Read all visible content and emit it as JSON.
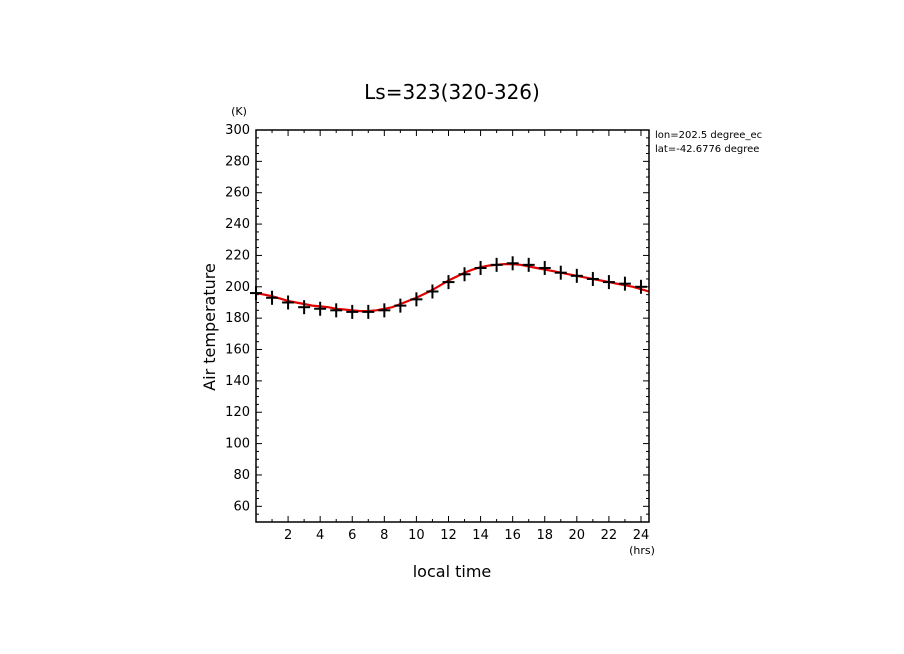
{
  "chart_data": {
    "type": "line",
    "title": "Ls=323(320-326)",
    "xlabel": "local time",
    "ylabel": "Air temperature",
    "x_unit": "(hrs)",
    "y_unit": "(K)",
    "xlim": [
      0,
      24.5
    ],
    "ylim": [
      50,
      300
    ],
    "x_ticks": [
      2,
      4,
      6,
      8,
      10,
      12,
      14,
      16,
      18,
      20,
      22,
      24
    ],
    "y_ticks": [
      60,
      80,
      100,
      120,
      140,
      160,
      180,
      200,
      220,
      240,
      260,
      280,
      300
    ],
    "grid": false,
    "legend": "none",
    "info_lines": [
      "lon=202.5 degree_ec",
      "lat=-42.6776 degree"
    ],
    "series": [
      {
        "style": "plus-markers",
        "color": "#000000",
        "x": [
          0,
          1,
          2,
          3,
          4,
          5,
          6,
          7,
          8,
          9,
          10,
          11,
          12,
          13,
          14,
          15,
          16,
          17,
          18,
          19,
          20,
          21,
          22,
          23,
          24
        ],
        "values": [
          196,
          193,
          190,
          187,
          186,
          185,
          184,
          184,
          185,
          188,
          192,
          197,
          203,
          208,
          212,
          214,
          215,
          214,
          212,
          209,
          207,
          205,
          203,
          202,
          200
        ]
      },
      {
        "style": "line",
        "color": "#e00000",
        "x": [
          0,
          0.5,
          1,
          1.5,
          2,
          2.5,
          3,
          3.5,
          4,
          4.5,
          5,
          5.5,
          6,
          6.5,
          7,
          7.5,
          8,
          8.5,
          9,
          9.5,
          10,
          10.5,
          11,
          11.5,
          12,
          12.5,
          13,
          13.5,
          14,
          14.5,
          15,
          15.5,
          16,
          16.5,
          17,
          17.5,
          18,
          18.5,
          19,
          19.5,
          20,
          20.5,
          21,
          21.5,
          22,
          22.5,
          23,
          23.5,
          24,
          24.5
        ],
        "values": [
          196,
          195,
          194,
          192.5,
          191,
          190,
          189,
          188,
          187.5,
          187,
          186,
          185.5,
          185,
          184.5,
          184.5,
          185,
          186,
          187,
          189,
          191,
          193,
          195.5,
          198,
          201,
          204,
          206.5,
          209,
          211,
          212.5,
          213.5,
          214,
          214.5,
          214.5,
          214,
          213,
          212,
          211,
          210,
          209,
          208,
          207,
          206,
          205,
          204,
          203,
          202,
          201,
          200,
          198.5,
          197
        ]
      }
    ]
  }
}
